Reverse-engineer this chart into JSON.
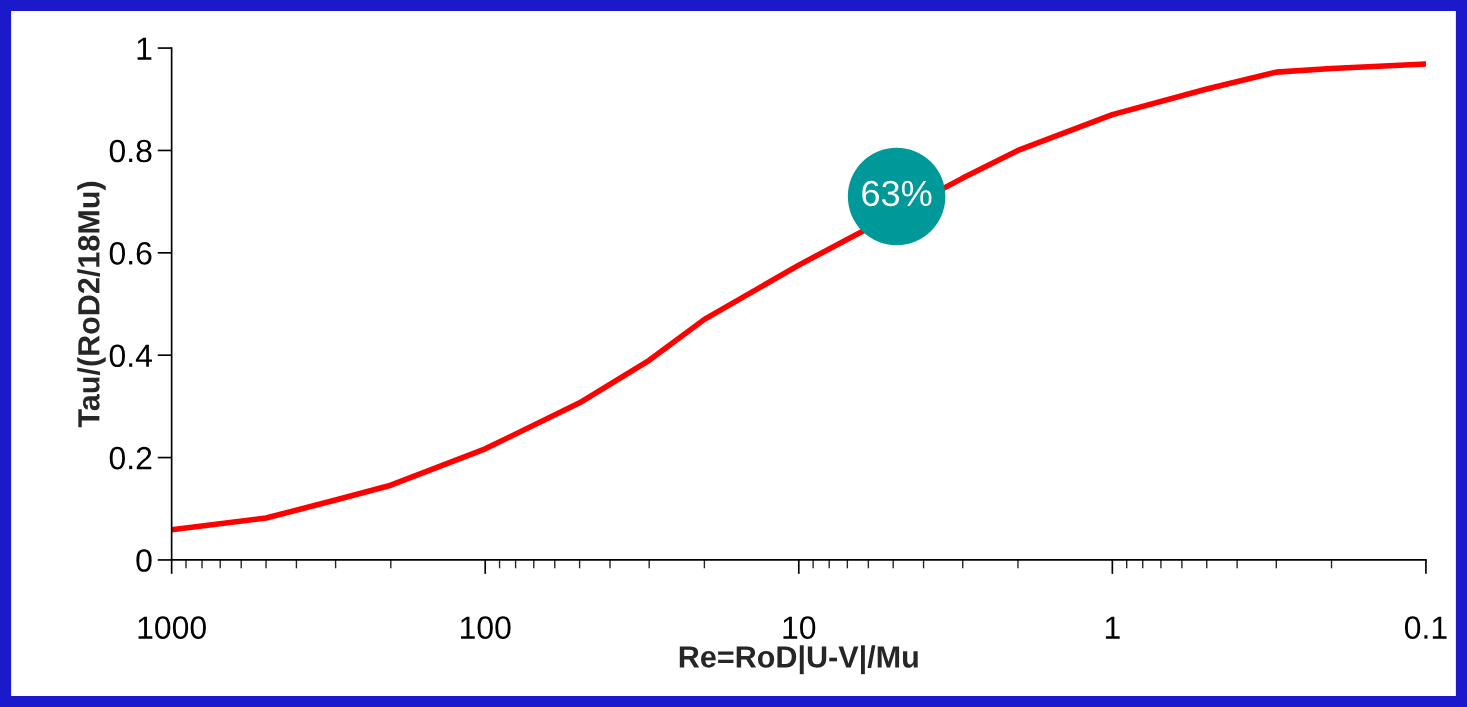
{
  "chart_data": {
    "type": "line",
    "xlabel": "Re=RoD|U-V|/Mu",
    "ylabel": "Tau/(RoD2/18Mu)",
    "x": [
      1000,
      500,
      300,
      200,
      100,
      50,
      30,
      20,
      10,
      5,
      3,
      2,
      1,
      0.5,
      0.3,
      0.2,
      0.1
    ],
    "series": [
      {
        "color": "#ff0000",
        "values": [
          0.059,
          0.082,
          0.117,
          0.146,
          0.217,
          0.307,
          0.39,
          0.47,
          0.576,
          null,
          0.746,
          0.8,
          0.87,
          0.92,
          0.953,
          0.96,
          0.969
        ]
      }
    ],
    "log": "x",
    "xlim": [
      1000,
      0.1
    ],
    "xticks": [
      1000,
      100,
      10,
      1,
      0.1
    ],
    "ylim": [
      0,
      1
    ],
    "yticks": [
      0,
      0.2,
      0.4,
      0.6,
      0.8,
      1
    ],
    "grid": false,
    "line_style": "solid",
    "annotations": [
      "63%"
    ]
  }
}
